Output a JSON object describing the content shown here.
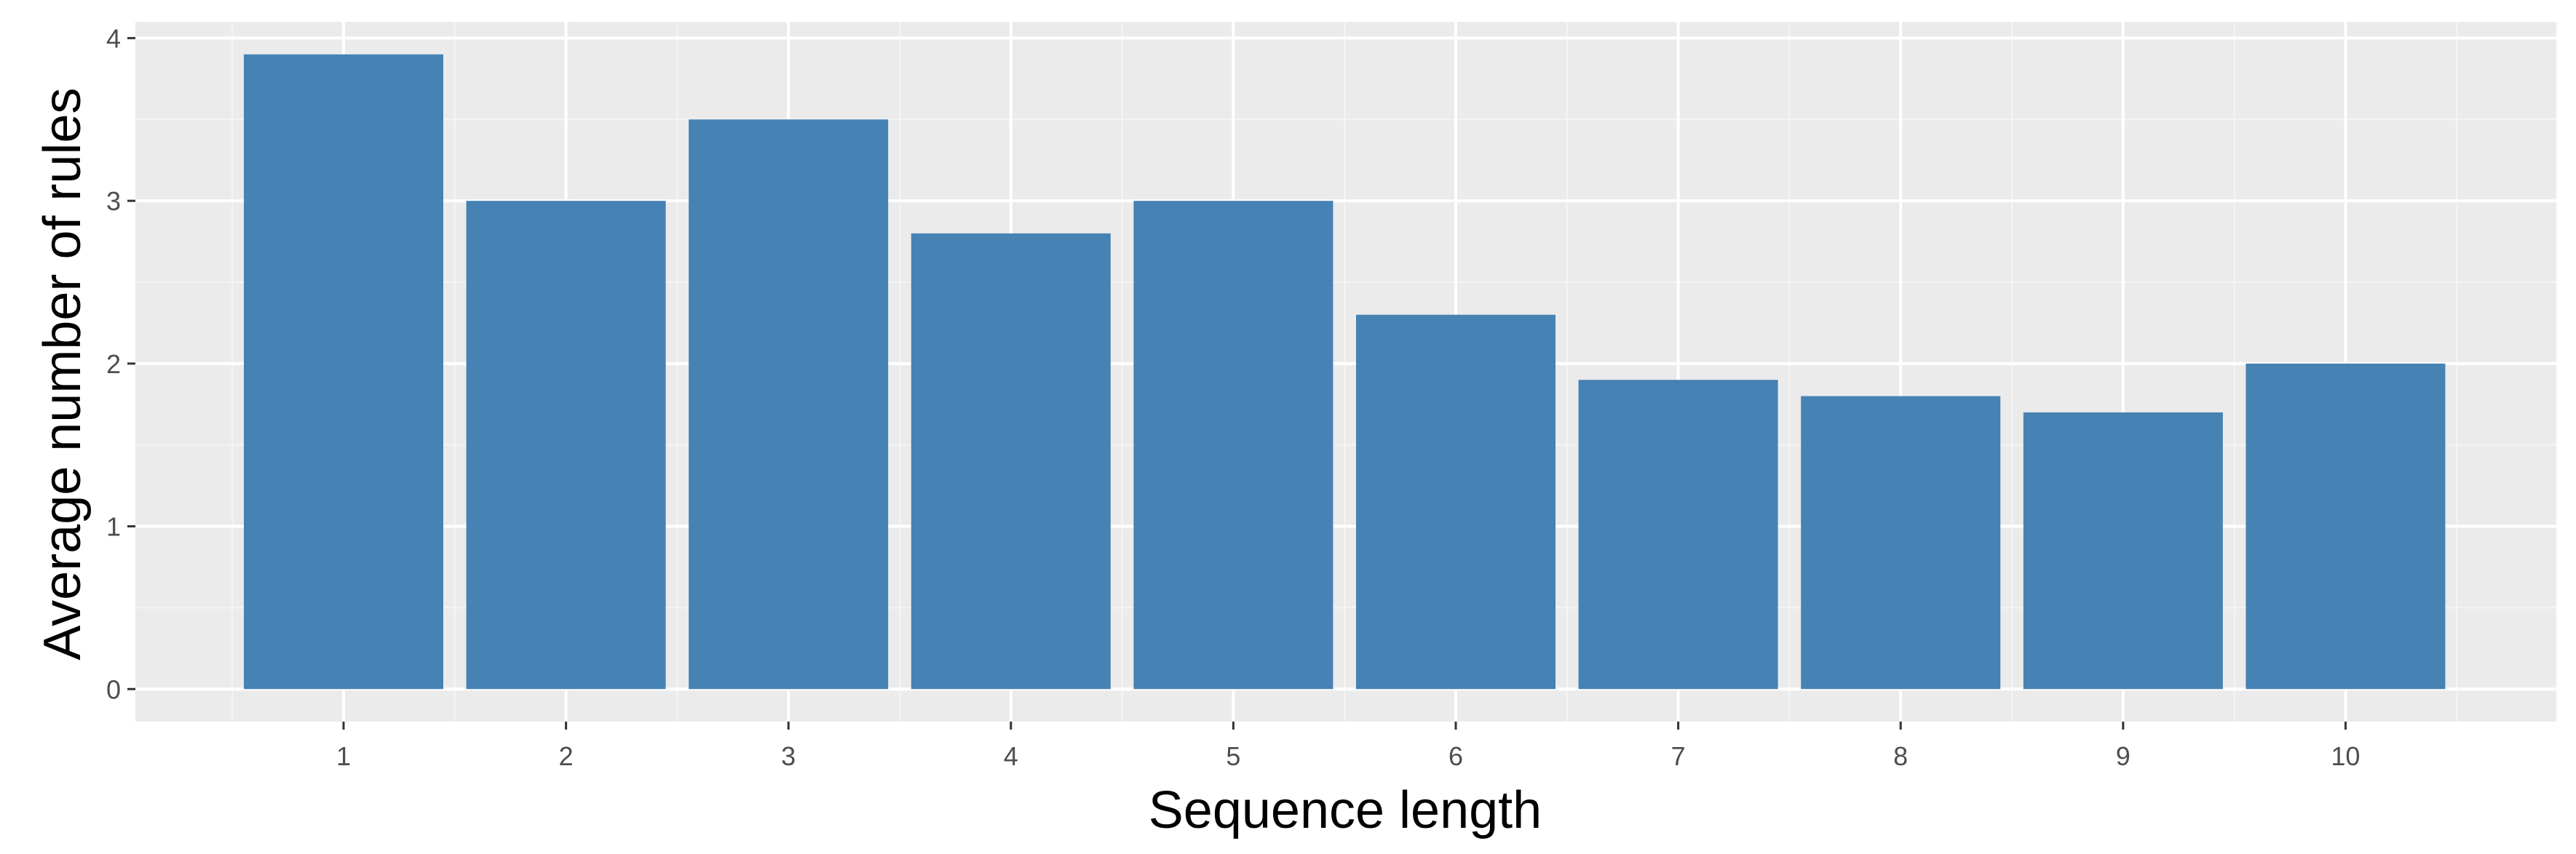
{
  "chart_data": {
    "type": "bar",
    "title": "",
    "xlabel": "Sequence length",
    "ylabel": "Average number of rules",
    "categories": [
      "1",
      "2",
      "3",
      "4",
      "5",
      "6",
      "7",
      "8",
      "9",
      "10"
    ],
    "values": [
      3.9,
      3.0,
      3.5,
      2.8,
      3.0,
      2.3,
      1.9,
      1.8,
      1.7,
      2.0
    ],
    "ylim": [
      -0.2,
      4.1
    ],
    "yticks": [
      0,
      1,
      2,
      3,
      4
    ],
    "ytick_labels": [
      "0",
      "1",
      "2",
      "3",
      "4"
    ],
    "grid": true,
    "legend": "none",
    "colors": {
      "bar": "#4682b4",
      "panel_background": "#ebebeb",
      "grid_major": "#ffffff",
      "grid_minor": "#f5f5f5",
      "tick_text": "#4d4d4d",
      "tick_mark": "#333333",
      "title_text": "#000000"
    }
  }
}
